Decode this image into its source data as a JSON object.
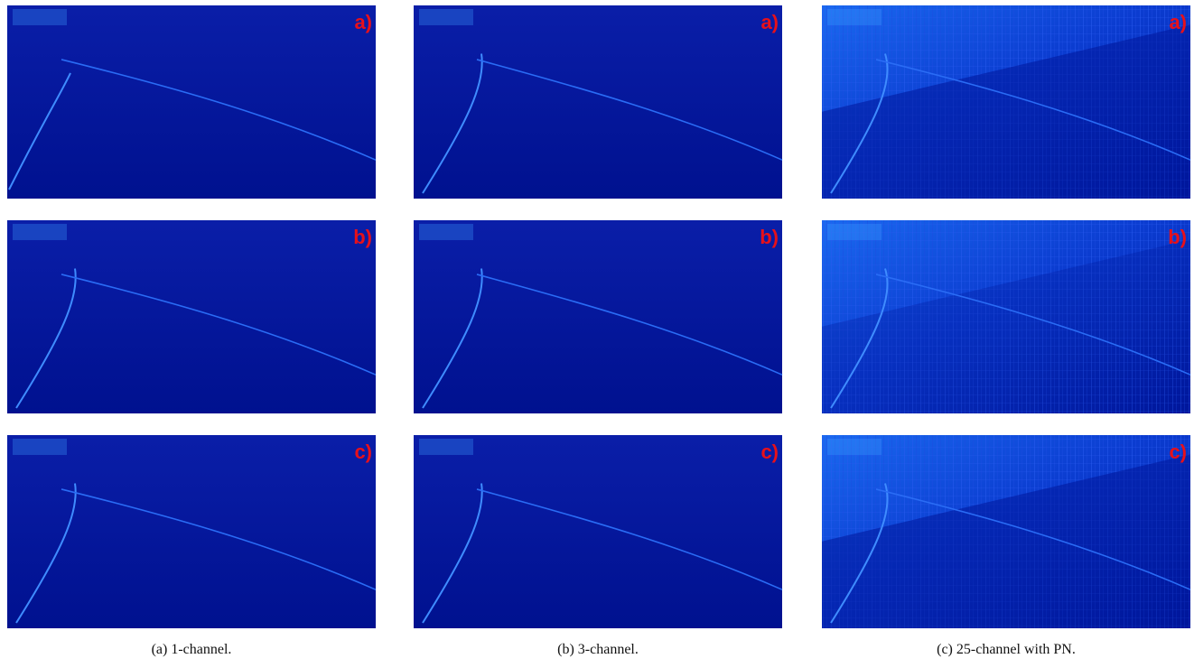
{
  "subfigures": [
    {
      "caption": "(a) 1-channel.",
      "panels": [
        "a)",
        "b)",
        "c)"
      ]
    },
    {
      "caption": "(b) 3-channel.",
      "panels": [
        "a)",
        "b)",
        "c)"
      ]
    },
    {
      "caption": "(c) 25-channel with PN.",
      "panels": [
        "a)",
        "b)",
        "c)"
      ]
    }
  ]
}
